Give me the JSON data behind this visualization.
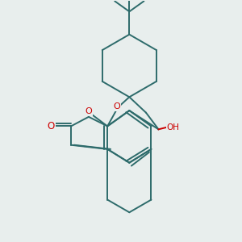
{
  "bg_color": "#e8eeed",
  "bond_color": "#2d6b6b",
  "O_color": "#cc0000",
  "lw": 1.4,
  "fig_w": 3.0,
  "fig_h": 3.0,
  "dpi": 100,
  "xlim": [
    0,
    300
  ],
  "ylim": [
    0,
    300
  ]
}
